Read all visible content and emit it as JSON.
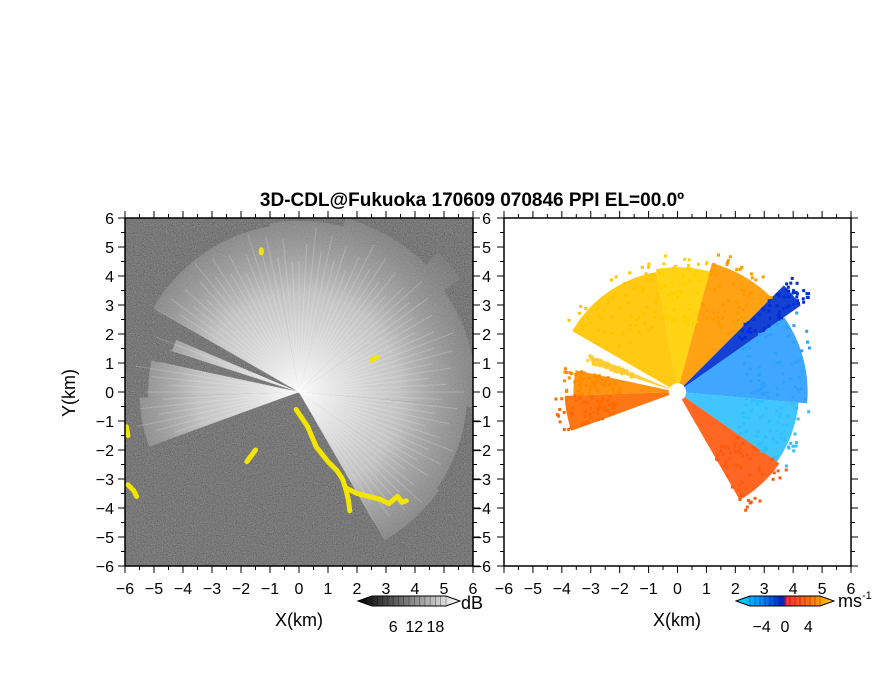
{
  "chart_data": [
    {
      "type": "heatmap",
      "panel": "left",
      "title": "3D-CDL@Fukuoka 170609 070846 PPI EL=00.0º",
      "quantity": "signal intensity",
      "xlabel": "X(km)",
      "ylabel": "Y(km)",
      "xlim": [
        -6,
        6
      ],
      "ylim": [
        -6,
        6
      ],
      "x_ticks": [
        "-6",
        "-5",
        "-4",
        "-3",
        "-2",
        "-1",
        "0",
        "1",
        "2",
        "3",
        "4",
        "5",
        "6"
      ],
      "y_ticks": [
        "-6",
        "-5",
        "-4",
        "-3",
        "-2",
        "-1",
        "0",
        "1",
        "2",
        "3",
        "4",
        "5",
        "6"
      ],
      "colorbar": {
        "ticks": [
          "6",
          "12",
          "18"
        ],
        "tick_values": [
          6,
          12,
          18
        ],
        "unit": "dB",
        "range": [
          0,
          21
        ],
        "colors": [
          "#000000",
          "#ffffff"
        ]
      },
      "background_color": "#2a2a2a",
      "highlight_color": "#f2e600",
      "yellow_segments": [
        [
          [
            -0.1,
            -0.6
          ],
          [
            0.3,
            -1.2
          ],
          [
            0.6,
            -1.9
          ],
          [
            1.0,
            -2.4
          ],
          [
            1.3,
            -2.7
          ],
          [
            1.5,
            -3.0
          ],
          [
            1.6,
            -3.3
          ],
          [
            1.7,
            -3.7
          ],
          [
            1.75,
            -4.1
          ]
        ],
        [
          [
            1.6,
            -3.3
          ],
          [
            2.0,
            -3.5
          ],
          [
            2.4,
            -3.6
          ],
          [
            2.8,
            -3.7
          ],
          [
            3.1,
            -3.85
          ],
          [
            3.4,
            -3.6
          ],
          [
            3.55,
            -3.8
          ],
          [
            3.7,
            -3.75
          ]
        ],
        [
          [
            -5.9,
            -3.2
          ],
          [
            -5.7,
            -3.4
          ],
          [
            -5.6,
            -3.6
          ]
        ],
        [
          [
            -5.95,
            -1.2
          ],
          [
            -5.9,
            -1.5
          ]
        ],
        [
          [
            -1.8,
            -2.4
          ],
          [
            -1.5,
            -2.0
          ]
        ],
        [
          [
            -1.3,
            4.8
          ],
          [
            -1.3,
            4.9
          ]
        ],
        [
          [
            2.5,
            1.1
          ],
          [
            2.7,
            1.2
          ]
        ]
      ]
    },
    {
      "type": "heatmap",
      "panel": "right",
      "quantity": "radial velocity",
      "xlabel": "X(km)",
      "xlim": [
        -6,
        6
      ],
      "ylim": [
        -6,
        6
      ],
      "x_ticks": [
        "-6",
        "-5",
        "-4",
        "-3",
        "-2",
        "-1",
        "0",
        "1",
        "2",
        "3",
        "4",
        "5",
        "6"
      ],
      "y_ticks": [
        "-6",
        "-5",
        "-4",
        "-3",
        "-2",
        "-1",
        "0",
        "1",
        "2",
        "3",
        "4",
        "5",
        "6"
      ],
      "colorbar": {
        "ticks": [
          "-4",
          "0",
          "4"
        ],
        "tick_values": [
          -4,
          0,
          4
        ],
        "unit": "ms",
        "unit_exp": "-1",
        "range": [
          -6,
          6
        ],
        "colors": [
          "#00e0ff",
          "#0090ff",
          "#0020c0",
          "#ff3030",
          "#ff7010",
          "#ffd000"
        ]
      },
      "sectors": [
        {
          "az_from": 300,
          "az_to": 350,
          "range_km": [
            0.3,
            4.2
          ],
          "color": "#ffc400"
        },
        {
          "az_from": 350,
          "az_to": 15,
          "range_km": [
            0.3,
            4.3
          ],
          "color": "#ffd000"
        },
        {
          "az_from": 15,
          "az_to": 45,
          "range_km": [
            0.3,
            4.6
          ],
          "color": "#ff9a00"
        },
        {
          "az_from": 45,
          "az_to": 55,
          "range_km": [
            0.3,
            5.2
          ],
          "color": "#0030d0"
        },
        {
          "az_from": 55,
          "az_to": 95,
          "range_km": [
            0.3,
            4.5
          ],
          "color": "#2fa0ff"
        },
        {
          "az_from": 95,
          "az_to": 125,
          "range_km": [
            0.3,
            4.2
          ],
          "color": "#30c0ff"
        },
        {
          "az_from": 125,
          "az_to": 150,
          "range_km": [
            0.3,
            4.3
          ],
          "color": "#ff5a10"
        },
        {
          "az_from": 250,
          "az_to": 268,
          "range_km": [
            0.3,
            3.9
          ],
          "color": "#ff6a00"
        },
        {
          "az_from": 268,
          "az_to": 282,
          "range_km": [
            0.3,
            3.6
          ],
          "color": "#ff8a00"
        },
        {
          "az_from": 288,
          "az_to": 293,
          "range_km": [
            0.3,
            3.0
          ],
          "color": "#ffcc30"
        }
      ]
    }
  ]
}
